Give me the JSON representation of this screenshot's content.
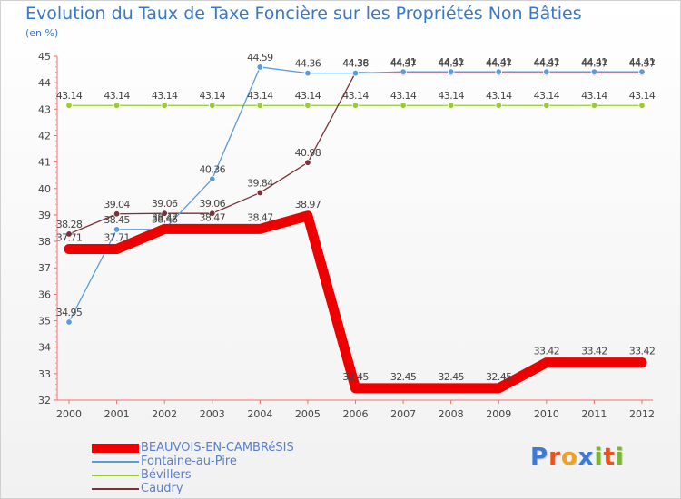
{
  "title": "Evolution du Taux de Taxe Foncière sur les Propriétés Non Bâties",
  "unit_label": "(en %)",
  "logo": {
    "letters": [
      "P",
      "r",
      "o",
      "x",
      "i",
      "t",
      "i"
    ],
    "colors": [
      "#3d7ad6",
      "#e8531f",
      "#f0a21c",
      "#3d7ad6",
      "#79b82c",
      "#e8531f",
      "#79b82c"
    ]
  },
  "chart_data": {
    "type": "line",
    "x": [
      "2000",
      "2001",
      "2002",
      "2003",
      "2004",
      "2005",
      "2006",
      "2007",
      "2008",
      "2009",
      "2010",
      "2011",
      "2012"
    ],
    "ylim": [
      32,
      45
    ],
    "yticks": [
      "32",
      "33",
      "34",
      "35",
      "36",
      "37",
      "38",
      "39",
      "40",
      "41",
      "42",
      "43",
      "44",
      "45"
    ],
    "grid": false,
    "series": [
      {
        "name": "Bévillers",
        "color": "#99cc33",
        "values": [
          43.14,
          43.14,
          43.14,
          43.14,
          43.14,
          43.14,
          43.14,
          43.14,
          43.14,
          43.14,
          43.14,
          43.14,
          43.14
        ],
        "labels": [
          "43.14",
          "43.14",
          "43.14",
          "43.14",
          "43.14",
          "43.14",
          "43.14",
          "43.14",
          "43.14",
          "43.14",
          "43.14",
          "43.14",
          "43.14"
        ],
        "bold": false
      },
      {
        "name": "Caudry",
        "color": "#7a3238",
        "values": [
          38.28,
          39.04,
          39.06,
          39.06,
          39.84,
          40.98,
          44.38,
          44.37,
          44.37,
          44.37,
          44.37,
          44.37,
          44.37
        ],
        "labels": [
          "38.28",
          "39.04",
          "39.06",
          "39.06",
          "39.84",
          "40.98",
          "44.38",
          "44.37",
          "44.37",
          "44.37",
          "44.37",
          "44.37",
          "44.37"
        ],
        "bold": false
      },
      {
        "name": "Fontaine-au-Pire",
        "color": "#5a9bd8",
        "values": [
          34.95,
          38.45,
          38.46,
          40.36,
          44.59,
          44.36,
          44.36,
          44.41,
          44.41,
          44.41,
          44.41,
          44.41,
          44.41
        ],
        "labels": [
          "34.95",
          "38.45",
          "38.46",
          "40.36",
          "44.59",
          "44.36",
          "44.36",
          "44.41",
          "44.41",
          "44.41",
          "44.41",
          "44.41",
          "44.41"
        ],
        "bold": false
      },
      {
        "name": "BEAUVOIS-EN-CAMBRéSIS",
        "color": "#ee0000",
        "values": [
          37.71,
          37.71,
          38.47,
          38.47,
          38.47,
          38.97,
          32.45,
          32.45,
          32.45,
          32.45,
          33.42,
          33.42,
          33.42
        ],
        "labels": [
          "37.71",
          "37.71",
          "38.47",
          "38.47",
          "38.47",
          "38.97",
          "32.45",
          "32.45",
          "32.45",
          "32.45",
          "33.42",
          "33.42",
          "33.42"
        ],
        "bold": true
      }
    ],
    "legend": [
      {
        "name": "BEAUVOIS-EN-CAMBRéSIS",
        "color": "#ee0000",
        "bold": true
      },
      {
        "name": "Fontaine-au-Pire",
        "color": "#5a9bd8",
        "bold": false
      },
      {
        "name": "Bévillers",
        "color": "#99cc33",
        "bold": false
      },
      {
        "name": "Caudry",
        "color": "#7a3238",
        "bold": false
      }
    ]
  }
}
